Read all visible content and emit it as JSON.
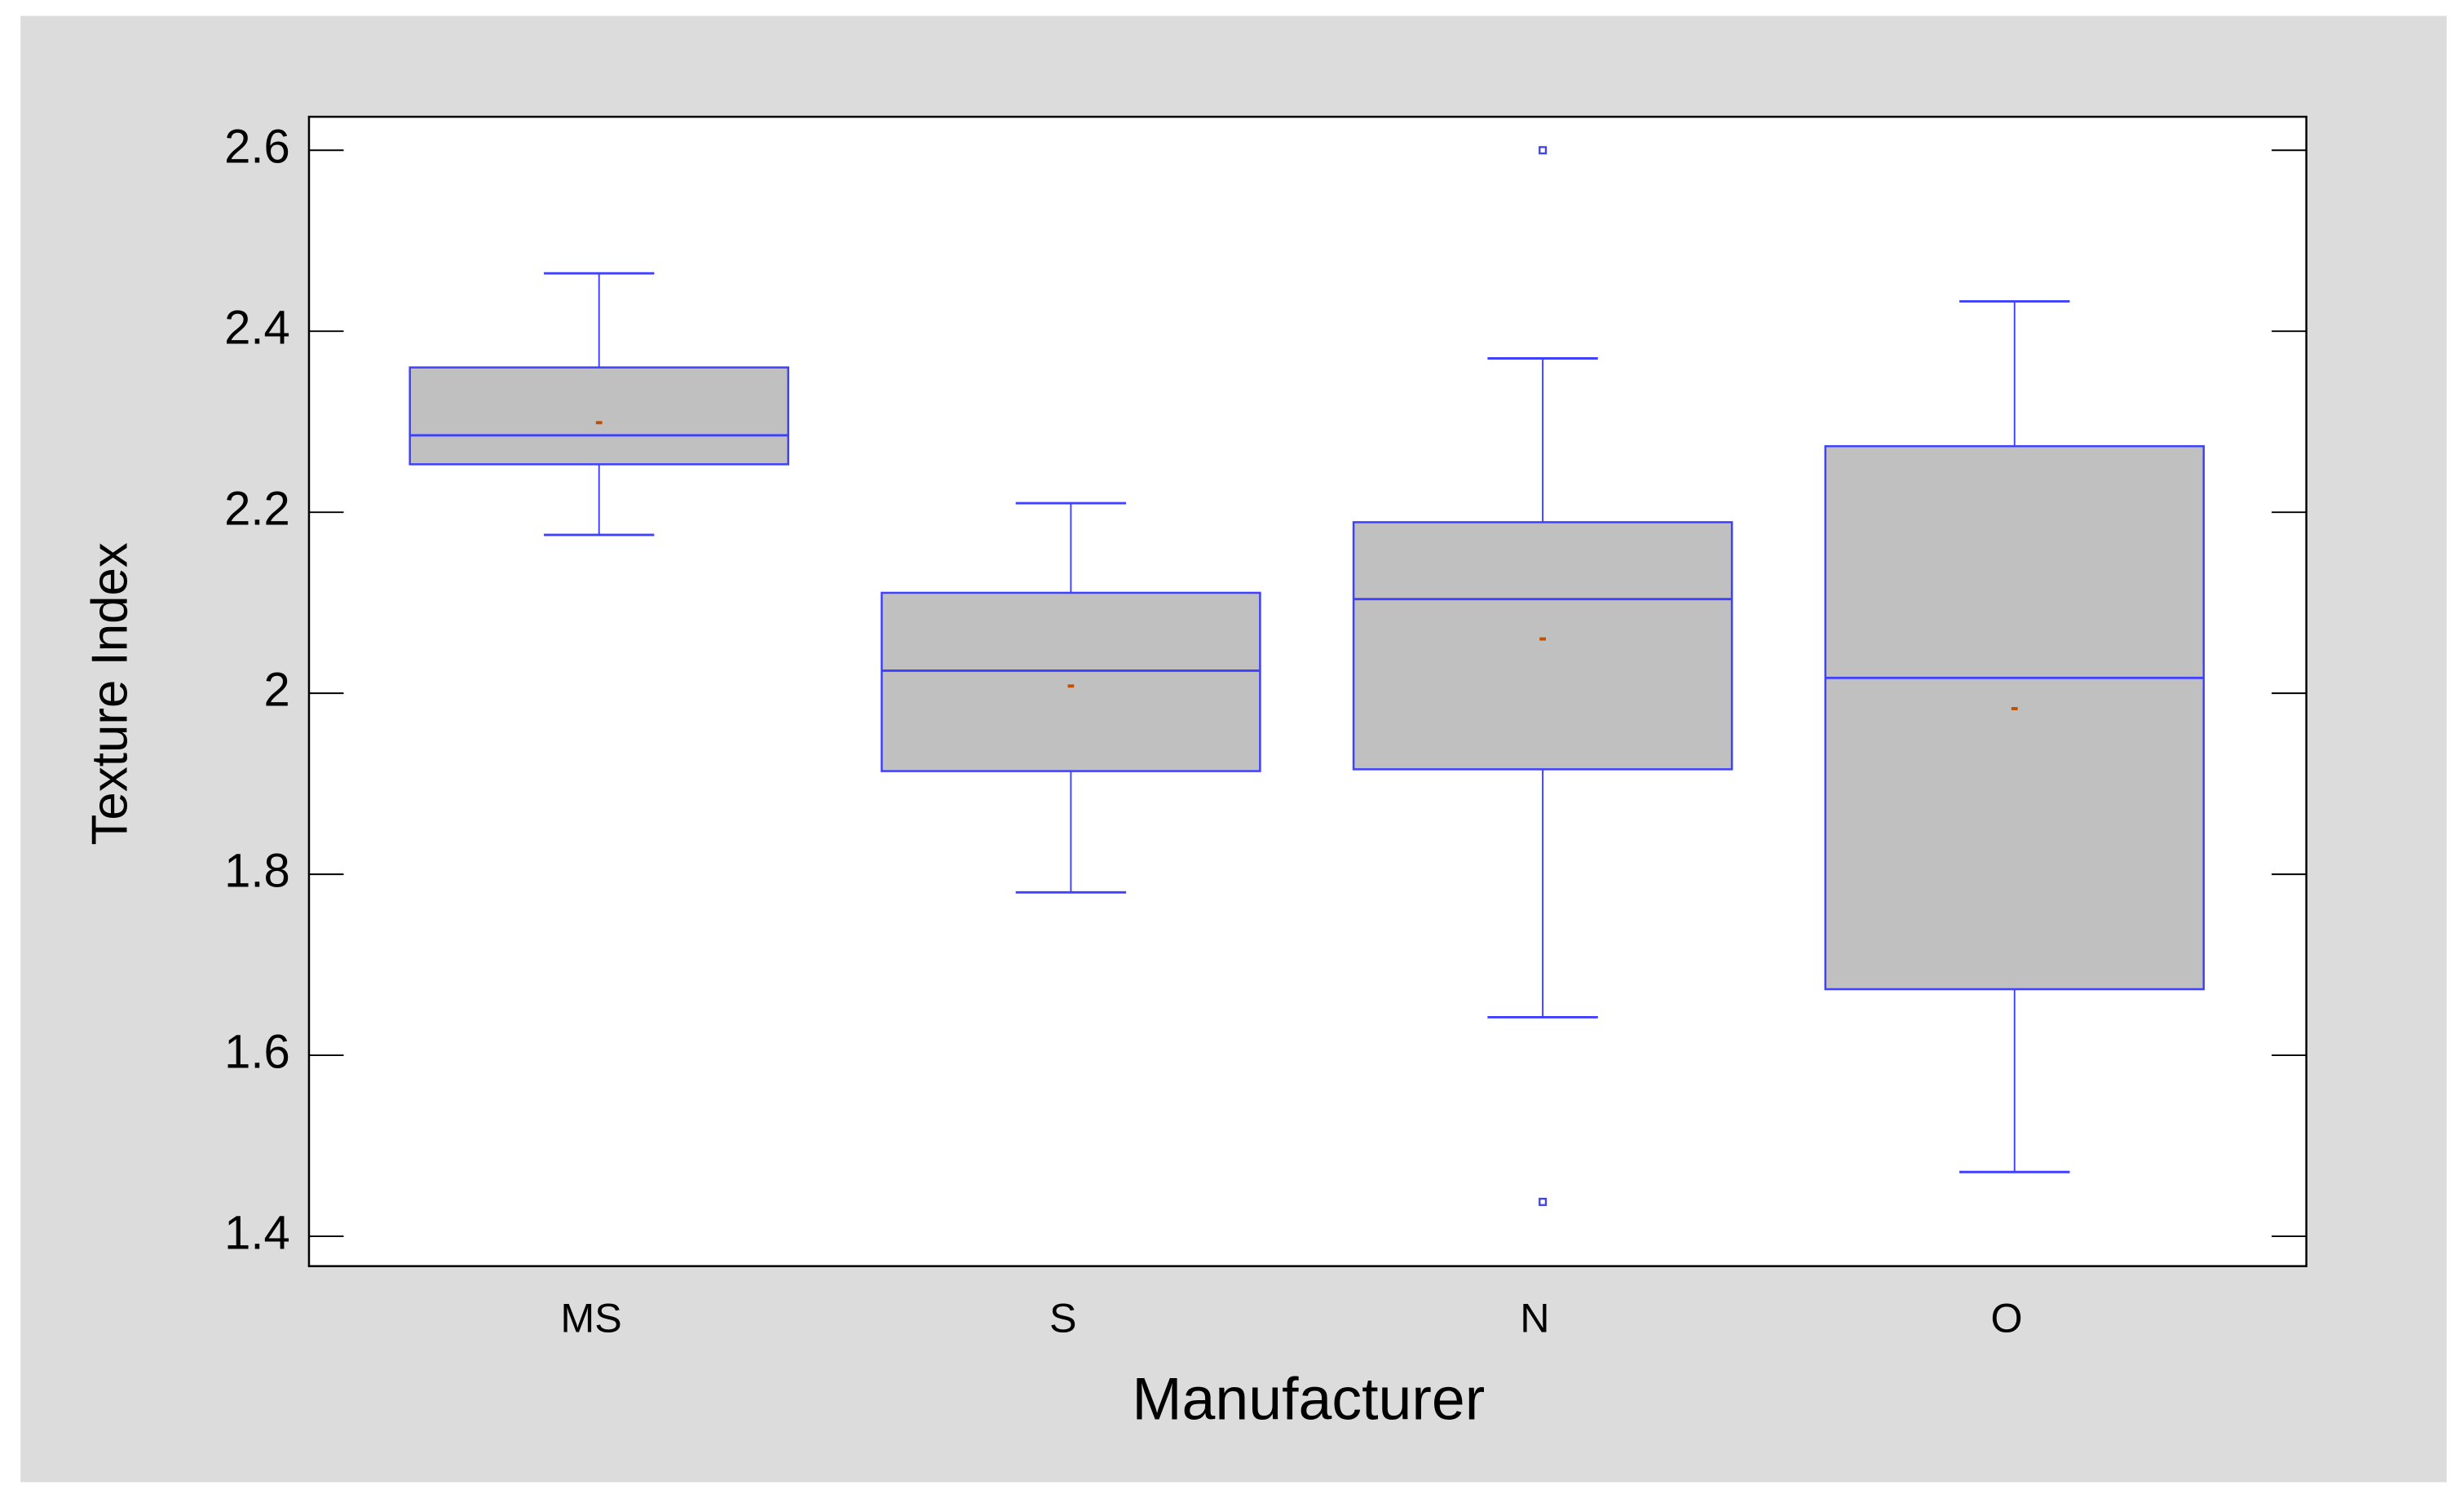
{
  "chart_data": {
    "type": "box",
    "x_label": "Manufacturer",
    "y_label": "Texture Index",
    "categories": [
      "MS",
      "S",
      "N",
      "O"
    ],
    "boxes": [
      {
        "whisker_low": 2.175,
        "q1": 2.253,
        "median": 2.285,
        "q3": 2.36,
        "whisker_high": 2.464,
        "mean": 2.299,
        "outliers": []
      },
      {
        "whisker_low": 1.78,
        "q1": 1.914,
        "median": 2.025,
        "q3": 2.111,
        "whisker_high": 2.21,
        "mean": 2.008,
        "outliers": []
      },
      {
        "whisker_low": 1.642,
        "q1": 1.916,
        "median": 2.104,
        "q3": 2.189,
        "whisker_high": 2.37,
        "mean": 2.06,
        "outliers": [
          2.6,
          1.438
        ]
      },
      {
        "whisker_low": 1.471,
        "q1": 1.673,
        "median": 2.017,
        "q3": 2.273,
        "whisker_high": 2.433,
        "mean": 1.983,
        "outliers": []
      }
    ],
    "ylim": [
      1.367,
      2.637
    ],
    "yticks": [
      1.4,
      1.6,
      1.8,
      2,
      2.2,
      2.4,
      2.6
    ],
    "box_fill": "#c0c0c0",
    "line_color": "#4040ff",
    "mean_color": "#c05000",
    "grid": false
  }
}
